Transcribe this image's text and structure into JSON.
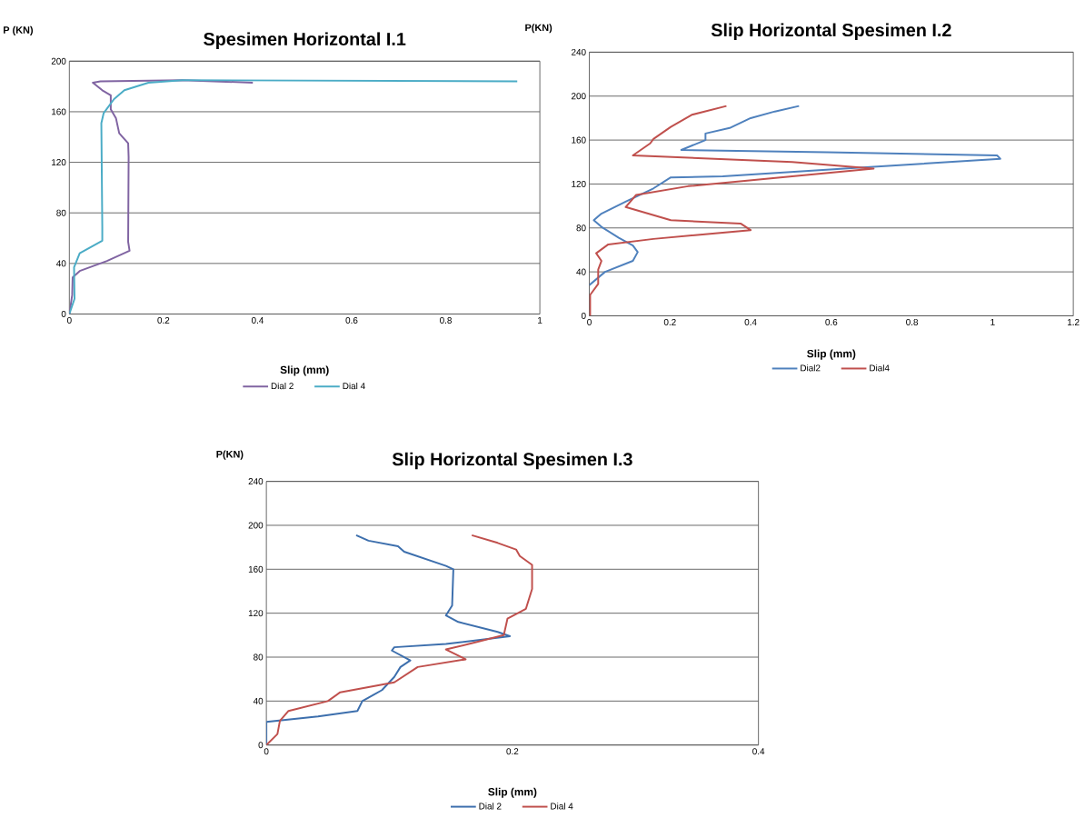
{
  "chart_data": [
    {
      "type": "line",
      "title": "Spesimen Horizontal I.1",
      "xlabel": "Slip (mm)",
      "ylabel": "P (KN)",
      "xlim": [
        0,
        1
      ],
      "xticks": [
        0,
        0.2,
        0.4,
        0.6,
        0.8,
        1
      ],
      "ylim": [
        0,
        200
      ],
      "yticks": [
        0,
        40,
        80,
        120,
        160,
        200
      ],
      "grid": "y",
      "legend": "bottom",
      "series": [
        {
          "name": "Dial 2",
          "color": "#8064a2",
          "x": [
            0,
            0.006,
            0.007,
            0.022,
            0.08,
            0.128,
            0.125,
            0.126,
            0.125,
            0.106,
            0.099,
            0.088,
            0.088,
            0.07,
            0.05,
            0.066,
            0.24,
            0.39
          ],
          "values": [
            0,
            15,
            29,
            34,
            42,
            50,
            57,
            124,
            135,
            143,
            155,
            162,
            173,
            177,
            183,
            184,
            185,
            183
          ]
        },
        {
          "name": "Dial 4",
          "color": "#4bacc6",
          "x": [
            0,
            0.011,
            0.01,
            0.022,
            0.07,
            0.07,
            0.068,
            0.073,
            0.095,
            0.117,
            0.168,
            0.24,
            0.952
          ],
          "values": [
            0,
            12,
            37,
            48,
            58,
            69,
            151,
            159,
            170,
            177,
            183,
            185,
            184
          ]
        }
      ]
    },
    {
      "type": "line",
      "title": "Slip Horizontal Spesimen I.2",
      "xlabel": "Slip (mm)",
      "ylabel": "P(KN)",
      "xlim": [
        0,
        1.2
      ],
      "xticks": [
        0,
        0.2,
        0.4,
        0.6,
        0.8,
        1,
        1.2
      ],
      "ylim": [
        0,
        240
      ],
      "yticks": [
        0,
        40,
        80,
        120,
        160,
        200,
        240
      ],
      "grid": "y",
      "legend": "bottom",
      "series": [
        {
          "name": "Dial2",
          "color": "#4f81bd",
          "x": [
            0,
            0.039,
            0.108,
            0.12,
            0.108,
            0.073,
            0.03,
            0.011,
            0.03,
            0.09,
            0.159,
            0.202,
            0.331,
            0.632,
            1.019,
            1.011,
            0.589,
            0.228,
            0.288,
            0.288,
            0.348,
            0.4,
            0.46,
            0.52
          ],
          "values": [
            28,
            40,
            50,
            58,
            64,
            71,
            81,
            87,
            93,
            104,
            116,
            126,
            127,
            134,
            143,
            146,
            149,
            151,
            160,
            166,
            171,
            180,
            186,
            191
          ]
        },
        {
          "name": "Dial4",
          "color": "#c0504d",
          "x": [
            0.002,
            0.002,
            0.022,
            0.022,
            0.03,
            0.017,
            0.047,
            0.159,
            0.4,
            0.375,
            0.202,
            0.09,
            0.116,
            0.245,
            0.503,
            0.705,
            0.503,
            0.108,
            0.151,
            0.159,
            0.202,
            0.254,
            0.34
          ],
          "values": [
            0,
            19,
            29,
            42,
            50,
            57,
            65,
            70,
            78,
            84,
            87,
            99,
            110,
            118,
            127,
            134,
            140,
            146,
            157,
            161,
            172,
            183,
            191
          ]
        }
      ]
    },
    {
      "type": "line",
      "title": "Slip Horizontal Spesimen I.3",
      "xlabel": "Slip (mm)",
      "ylabel": "P(KN)",
      "xlim": [
        0,
        0.4
      ],
      "xticks": [
        0,
        0.2,
        0.4
      ],
      "ylim": [
        0,
        240
      ],
      "yticks": [
        0,
        40,
        80,
        120,
        160,
        200,
        240
      ],
      "grid": "y",
      "legend": "bottom",
      "series": [
        {
          "name": "Dial 2",
          "color": "#3d6fad",
          "x": [
            0,
            0,
            0.042,
            0.074,
            0.078,
            0.094,
            0.104,
            0.109,
            0.117,
            0.102,
            0.104,
            0.146,
            0.198,
            0.188,
            0.156,
            0.146,
            0.151,
            0.152,
            0.146,
            0.112,
            0.107,
            0.083,
            0.073
          ],
          "values": [
            0,
            21,
            26,
            31,
            40,
            50,
            62,
            71,
            77,
            86,
            89,
            92,
            99,
            103,
            112,
            118,
            127,
            160,
            163,
            176,
            181,
            186,
            191
          ]
        },
        {
          "name": "Dial 4",
          "color": "#c0504d",
          "x": [
            0,
            0.009,
            0.011,
            0.018,
            0.05,
            0.06,
            0.104,
            0.123,
            0.162,
            0.146,
            0.172,
            0.193,
            0.196,
            0.211,
            0.216,
            0.216,
            0.206,
            0.203,
            0.188,
            0.167
          ],
          "values": [
            0,
            10,
            22,
            31,
            40,
            48,
            57,
            71,
            78,
            87,
            94,
            100,
            115,
            124,
            142,
            164,
            172,
            178,
            184,
            191
          ]
        }
      ]
    }
  ]
}
